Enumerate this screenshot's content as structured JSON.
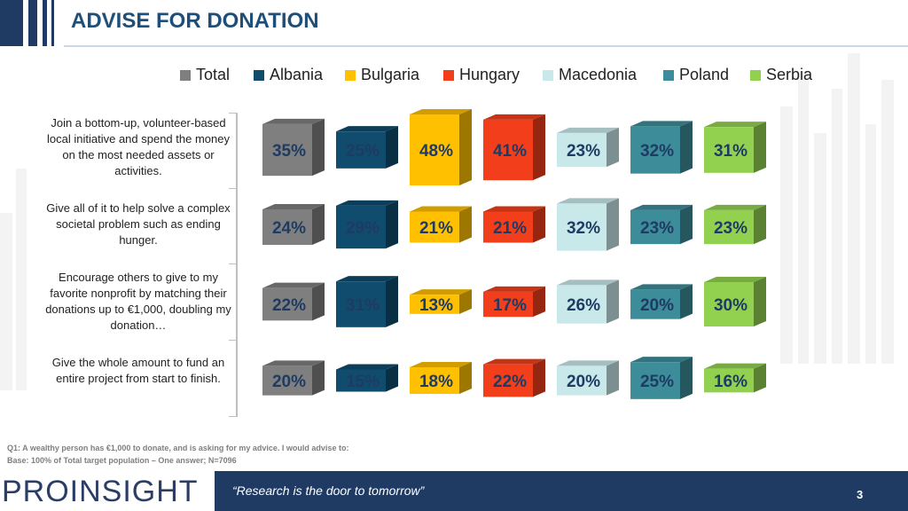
{
  "header": {
    "title": "ADVISE FOR DONATION"
  },
  "legend": [
    {
      "name": "Total",
      "color": "#7f7f7f"
    },
    {
      "name": "Albania",
      "color": "#0f4c6e"
    },
    {
      "name": "Bulgaria",
      "color": "#ffc000"
    },
    {
      "name": "Hungary",
      "color": "#f23e1a"
    },
    {
      "name": "Macedonia",
      "color": "#c9e8ea"
    },
    {
      "name": "Poland",
      "color": "#3d8c99"
    },
    {
      "name": "Serbia",
      "color": "#92d050"
    }
  ],
  "row_labels": [
    "Join a bottom-up, volunteer-based local initiative and spend the money on the most needed assets or activities.",
    "Give all of it to help solve a complex societal problem such as ending hunger.",
    "Encourage others to give to my favorite nonprofit by matching their donations up to €1,000, doubling my donation…",
    "Give the whole amount to fund an entire project from start to finish."
  ],
  "chart_data": {
    "type": "bar",
    "categories": [
      "Join a bottom-up, volunteer-based local initiative and spend the money on the most needed assets or activities.",
      "Give all of it to help solve a complex societal problem such as ending hunger.",
      "Encourage others to give to my favorite nonprofit by matching their donations up to €1,000, doubling my donation…",
      "Give the whole amount to fund an entire project from start to finish."
    ],
    "series": [
      {
        "name": "Total",
        "values": [
          35,
          24,
          22,
          20
        ]
      },
      {
        "name": "Albania",
        "values": [
          25,
          29,
          31,
          15
        ]
      },
      {
        "name": "Bulgaria",
        "values": [
          48,
          21,
          13,
          18
        ]
      },
      {
        "name": "Hungary",
        "values": [
          41,
          21,
          17,
          22
        ]
      },
      {
        "name": "Macedonia",
        "values": [
          23,
          32,
          26,
          20
        ]
      },
      {
        "name": "Poland",
        "values": [
          32,
          23,
          20,
          25
        ]
      },
      {
        "name": "Serbia",
        "values": [
          31,
          23,
          30,
          16
        ]
      }
    ],
    "unit": "%",
    "legend_position": "top",
    "grid": false
  },
  "footnotes": {
    "question": "Q1: A wealthy person has  €1,000 to donate, and is asking for my advice. I would advise to:",
    "base": "Base: 100% of Total target population – One answer; N=7096"
  },
  "footer": {
    "logo": "PROINSIGHT",
    "quote": "“Research is the door to tomorrow”",
    "page_number": "3"
  }
}
